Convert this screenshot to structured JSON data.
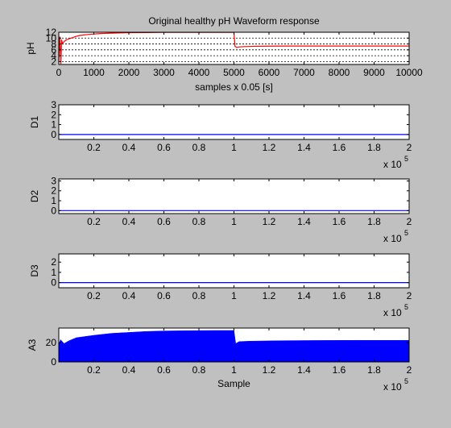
{
  "figure": {
    "background": "#c0c0c0",
    "axes_background": "#ffffff"
  },
  "chart_data": [
    {
      "id": "ph",
      "type": "line",
      "title": "Original healthy pH Waveform response",
      "xlabel": "samples x 0.05 [s]",
      "ylabel": "pH",
      "xlim": [
        0,
        10000
      ],
      "ylim": [
        1,
        12
      ],
      "xticks": [
        0,
        1000,
        2000,
        3000,
        4000,
        5000,
        6000,
        7000,
        8000,
        9000,
        10000
      ],
      "xticklabels": [
        "0",
        "1000",
        "2000",
        "3000",
        "4000",
        "5000",
        "6000",
        "7000",
        "8000",
        "9000",
        "10000"
      ],
      "yticks": [
        2,
        4,
        6,
        8,
        10,
        12
      ],
      "yticklabels": [
        "2",
        "4",
        "6",
        "8",
        "10",
        "12"
      ],
      "grid": "y-dotted",
      "series": [
        {
          "color": "#ff0000",
          "x": [
            0,
            30,
            60,
            80,
            100,
            150,
            200,
            300,
            400,
            500,
            600,
            800,
            1000,
            1200,
            1500,
            1800,
            2000,
            2500,
            3000,
            3500,
            4000,
            4500,
            5000,
            5030,
            5080,
            5150,
            5300,
            5600,
            6000,
            6500,
            7000,
            8000,
            9000,
            10000
          ],
          "y": [
            2,
            10.5,
            1.2,
            9.5,
            8.2,
            8.8,
            9.3,
            9.8,
            10.2,
            10.6,
            10.9,
            11.2,
            11.4,
            11.55,
            11.7,
            11.8,
            11.85,
            11.9,
            11.95,
            11.95,
            11.95,
            11.95,
            11.95,
            7.2,
            6.8,
            7.0,
            7.1,
            7.2,
            7.25,
            7.3,
            7.3,
            7.3,
            7.3,
            7.3
          ]
        }
      ]
    },
    {
      "id": "d1",
      "type": "line",
      "ylabel": "D1",
      "xlim": [
        0,
        200000
      ],
      "ylim": [
        -0.5,
        3
      ],
      "xticks": [
        20000,
        40000,
        60000,
        80000,
        100000,
        120000,
        140000,
        160000,
        180000,
        200000
      ],
      "xticklabels": [
        "0.2",
        "0.4",
        "0.6",
        "0.8",
        "1",
        "1.2",
        "1.4",
        "1.6",
        "1.8",
        "2"
      ],
      "yticks": [
        0,
        1,
        2,
        3
      ],
      "yticklabels": [
        "0",
        "1",
        "2",
        "3"
      ],
      "x_multiplier": {
        "base": "x 10",
        "exp": "5"
      },
      "series": [
        {
          "color": "#0000ff",
          "x": [
            0,
            200000
          ],
          "y": [
            0,
            0
          ]
        }
      ]
    },
    {
      "id": "d2",
      "type": "line",
      "ylabel": "D2",
      "xlim": [
        0,
        200000
      ],
      "ylim": [
        -0.3,
        3.2
      ],
      "xticks": [
        20000,
        40000,
        60000,
        80000,
        100000,
        120000,
        140000,
        160000,
        180000,
        200000
      ],
      "xticklabels": [
        "0.2",
        "0.4",
        "0.6",
        "0.8",
        "1",
        "1.2",
        "1.4",
        "1.6",
        "1.8",
        "2"
      ],
      "yticks": [
        0,
        1,
        2,
        3
      ],
      "yticklabels": [
        "0",
        "1",
        "2",
        "3"
      ],
      "x_multiplier": {
        "base": "x 10",
        "exp": "5"
      },
      "series": [
        {
          "color": "#0000ff",
          "x": [
            0,
            200000
          ],
          "y": [
            0,
            0
          ]
        }
      ]
    },
    {
      "id": "d3",
      "type": "line",
      "ylabel": "D3",
      "xlim": [
        0,
        200000
      ],
      "ylim": [
        -0.5,
        2.8
      ],
      "xticks": [
        20000,
        40000,
        60000,
        80000,
        100000,
        120000,
        140000,
        160000,
        180000,
        200000
      ],
      "xticklabels": [
        "0.2",
        "0.4",
        "0.6",
        "0.8",
        "1",
        "1.2",
        "1.4",
        "1.6",
        "1.8",
        "2"
      ],
      "yticks": [
        0,
        1,
        2
      ],
      "yticklabels": [
        "0",
        "1",
        "2"
      ],
      "x_multiplier": {
        "base": "x 10",
        "exp": "5"
      },
      "series": [
        {
          "color": "#0000ff",
          "x": [
            0,
            200000
          ],
          "y": [
            0,
            0
          ]
        }
      ]
    },
    {
      "id": "a3",
      "type": "area",
      "xlabel": "Sample",
      "ylabel": "A3",
      "xlim": [
        0,
        200000
      ],
      "ylim": [
        0,
        35
      ],
      "xticks": [
        20000,
        40000,
        60000,
        80000,
        100000,
        120000,
        140000,
        160000,
        180000,
        200000
      ],
      "xticklabels": [
        "0.2",
        "0.4",
        "0.6",
        "0.8",
        "1",
        "1.2",
        "1.4",
        "1.6",
        "1.8",
        "2"
      ],
      "yticks": [
        0,
        20
      ],
      "yticklabels": [
        "0",
        "20"
      ],
      "x_multiplier": {
        "base": "x 10",
        "exp": "5"
      },
      "series": [
        {
          "color": "#0000ff",
          "x": [
            0,
            1000,
            3000,
            6000,
            10000,
            20000,
            30000,
            40000,
            50000,
            60000,
            70000,
            80000,
            90000,
            100000,
            101000,
            103000,
            110000,
            130000,
            150000,
            170000,
            200000
          ],
          "y": [
            18,
            23,
            19,
            22,
            25,
            27.5,
            29.5,
            30.5,
            31.5,
            32,
            32.2,
            32.4,
            32.5,
            32.5,
            19,
            21,
            21.5,
            22,
            22.2,
            22.3,
            22.3
          ]
        }
      ]
    }
  ]
}
